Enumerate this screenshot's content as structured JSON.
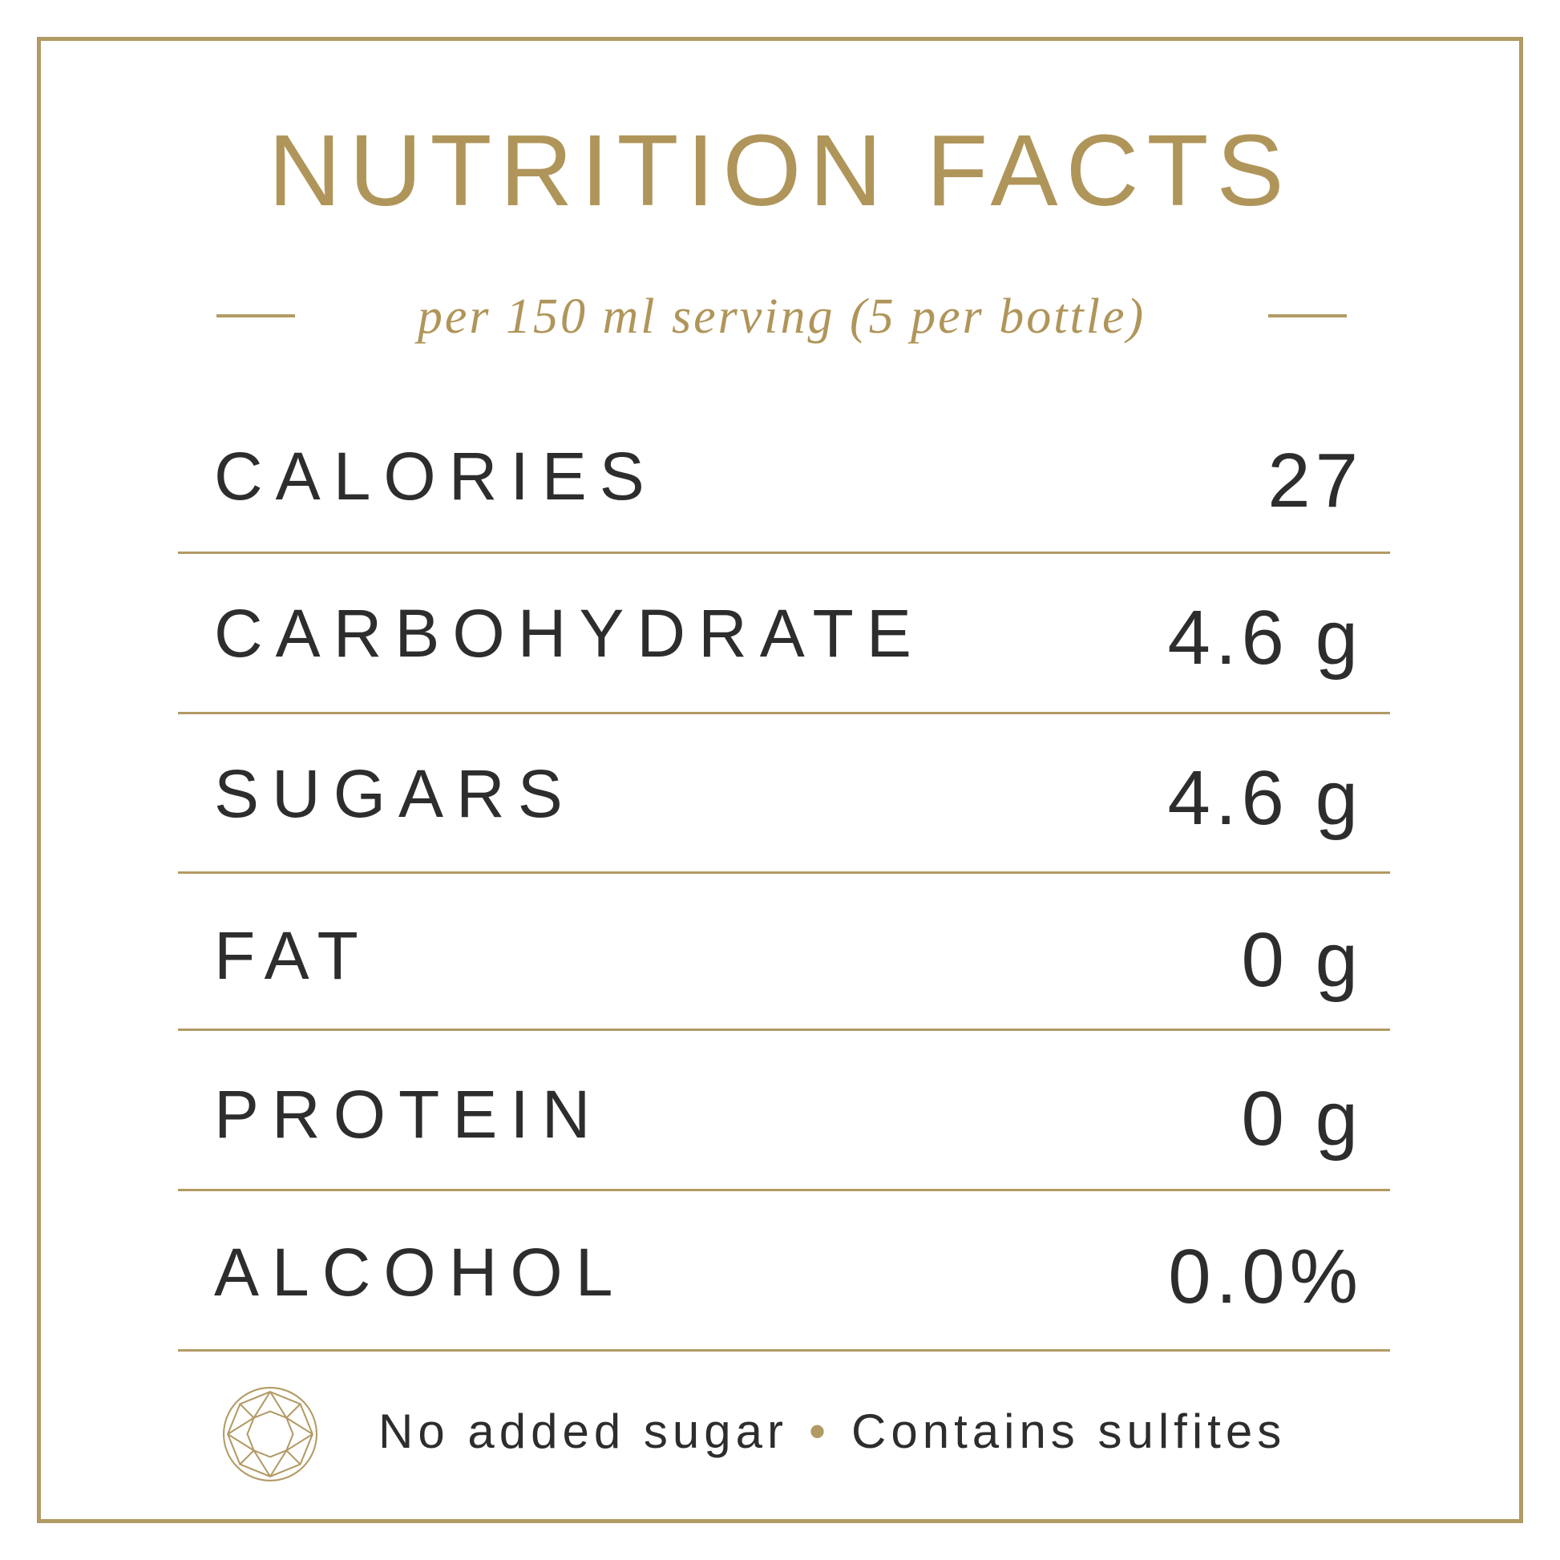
{
  "header": {
    "title": "NUTRITION FACTS",
    "subtitle": "per 150 ml serving (5 per bottle)"
  },
  "rows": [
    {
      "label": "CALORIES",
      "value": "27"
    },
    {
      "label": "CARBOHYDRATE",
      "value": "4.6 g"
    },
    {
      "label": "SUGARS",
      "value": "4.6 g"
    },
    {
      "label": "FAT",
      "value": "0 g"
    },
    {
      "label": "PROTEIN",
      "value": "0 g"
    },
    {
      "label": "ALCOHOL",
      "value": "0.0%"
    }
  ],
  "footer": {
    "note1": "No added sugar",
    "separator": "•",
    "note2": "Contains sulfites",
    "icon": "gem-icon"
  },
  "colors": {
    "accent": "#b29a64",
    "text": "#2d2d2d",
    "background": "#ffffff"
  }
}
